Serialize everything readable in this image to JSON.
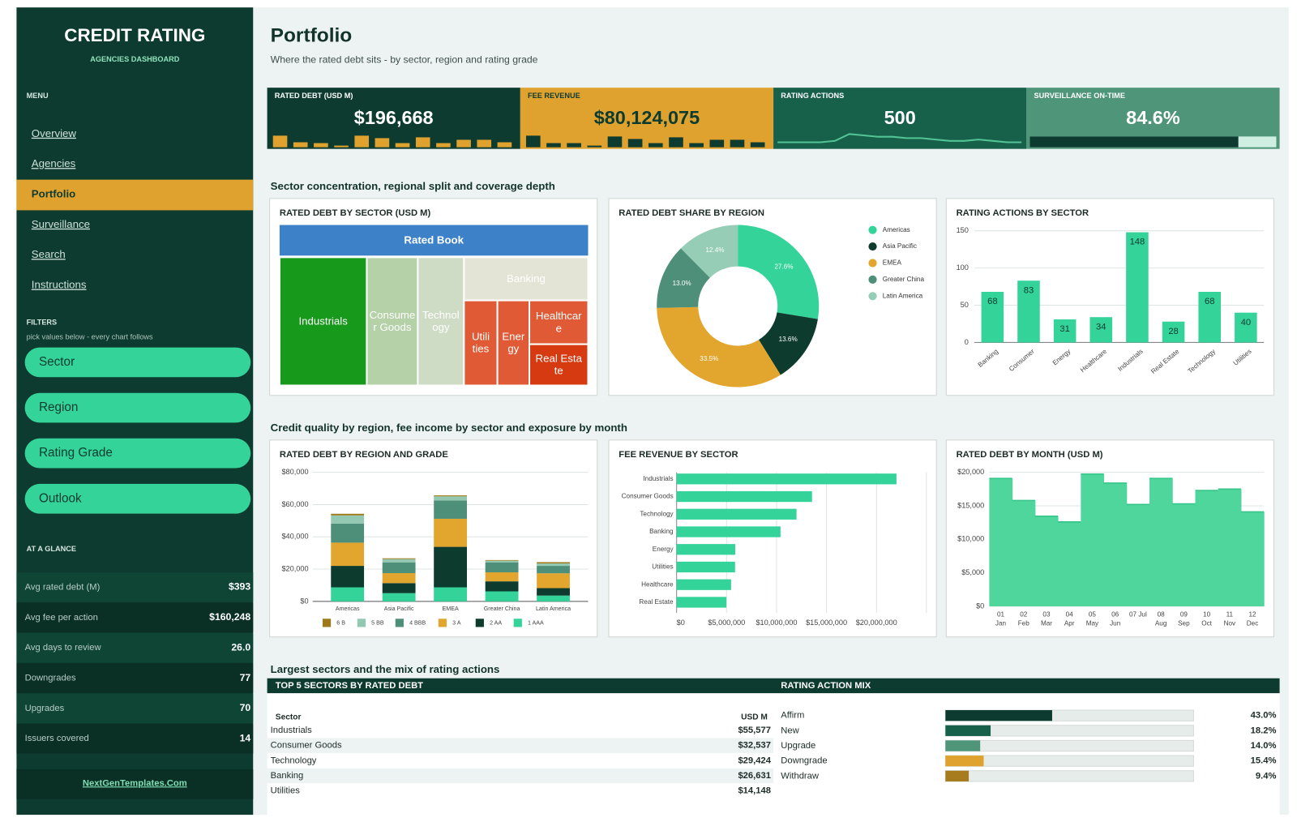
{
  "sidebar": {
    "title": "CREDIT RATING",
    "subtitle": "AGENCIES DASHBOARD",
    "menu_label": "MENU",
    "menu": [
      {
        "label": "Overview",
        "active": false
      },
      {
        "label": "Agencies",
        "active": false
      },
      {
        "label": "Portfolio",
        "active": true
      },
      {
        "label": "Surveillance",
        "active": false
      },
      {
        "label": "Search",
        "active": false
      },
      {
        "label": "Instructions",
        "active": false
      }
    ],
    "filters_label": "FILTERS",
    "filters_hint": "pick values below - every chart follows",
    "filters": [
      "Sector",
      "Region",
      "Rating Grade",
      "Outlook"
    ],
    "glance_label": "AT A GLANCE",
    "glance": [
      {
        "label": "Avg rated debt (M)",
        "value": "$393"
      },
      {
        "label": "Avg fee per action",
        "value": "$160,248"
      },
      {
        "label": "Avg days to review",
        "value": "26.0"
      },
      {
        "label": "Downgrades",
        "value": "77"
      },
      {
        "label": "Upgrades",
        "value": "70"
      },
      {
        "label": "Issuers covered",
        "value": "14"
      }
    ],
    "footer_link": "NextGenTemplates.Com"
  },
  "header": {
    "title": "Portfolio",
    "subtitle": "Where the rated debt sits - by sector, region and rating grade"
  },
  "kpis": [
    {
      "label": "RATED DEBT (USD M)",
      "value": "$196,668",
      "color": "#0d3b2f",
      "text_color": "#ffffff",
      "spark_type": "bar",
      "spark_color": "#e0a22e",
      "spark": [
        14,
        6,
        5,
        2,
        14,
        11,
        5,
        12,
        5,
        9,
        9,
        6
      ]
    },
    {
      "label": "FEE REVENUE",
      "value": "$80,124,075",
      "color": "#e0a22e",
      "text_color": "#0d3b2f",
      "spark_type": "bar",
      "spark_color": "#0d3b2f",
      "spark": [
        14,
        5,
        5,
        2,
        13,
        10,
        5,
        12,
        5,
        9,
        9,
        6
      ]
    },
    {
      "label": "RATING ACTIONS",
      "value": "500",
      "color": "#17604a",
      "text_color": "#ffffff",
      "spark_type": "line",
      "spark_color": "#52c495",
      "spark": [
        3,
        3,
        3,
        3,
        4,
        9,
        8,
        7,
        7,
        6,
        6,
        5,
        4,
        4,
        5,
        4,
        3,
        3
      ]
    },
    {
      "label": "SURVEILLANCE ON-TIME",
      "value": {
        "value": 84.6,
        "label": "84.6%"
      },
      "color": "#4e9579",
      "text_color": "#ffffff",
      "spark_type": "progress",
      "spark_color": "#0d3b2f",
      "track_color": "#cdeee0",
      "xlim": [
        0,
        100
      ]
    }
  ],
  "sections": [
    "Sector concentration, regional split and coverage depth",
    "Credit quality by region, fee income by sector and exposure by month",
    "Largest sectors and the mix of rating actions"
  ],
  "chart_data": [
    {
      "type": "treemap",
      "title": "RATED DEBT BY SECTOR (USD M)",
      "header": "Rated Book",
      "header_color": "#3d82c8",
      "nodes": [
        {
          "name": "Industrials",
          "value": 55577,
          "color": "#17991c"
        },
        {
          "name": "Consumer Goods",
          "value": 32537,
          "color": "#b4d1a8"
        },
        {
          "name": "Technology",
          "value": 29424,
          "color": "#cfdcc5"
        },
        {
          "name": "Banking",
          "value": 26631,
          "color": "#e3e3d6"
        },
        {
          "name": "Utilities",
          "value": 14148,
          "color": "#e05a35"
        },
        {
          "name": "Energy",
          "value": 13500,
          "color": "#e05a35"
        },
        {
          "name": "Healthcare",
          "value": 12800,
          "color": "#e05a35"
        },
        {
          "name": "Real Estate",
          "value": 12051,
          "color": "#d63a10"
        }
      ]
    },
    {
      "type": "donut",
      "title": "RATED DEBT SHARE BY REGION",
      "categories": [
        "Americas",
        "Asia Pacific",
        "EMEA",
        "Greater China",
        "Latin America"
      ],
      "values": [
        27.6,
        13.6,
        33.5,
        13.0,
        12.4
      ],
      "value_labels": [
        "27.6%",
        "13.6%",
        "33.5%",
        "13.0%",
        "12.4%"
      ],
      "colors": [
        "#34d399",
        "#0d3b2e",
        "#e2a52d",
        "#4e8f79",
        "#96cdb6"
      ]
    },
    {
      "type": "bar",
      "title": "RATING ACTIONS BY SECTOR",
      "categories": [
        "Banking",
        "Consumer",
        "Energy",
        "Healthcare",
        "Industrials",
        "Real Estate",
        "Technology",
        "Utilities"
      ],
      "values": [
        68,
        83,
        31,
        34,
        148,
        28,
        68,
        40
      ],
      "color": "#34d399",
      "ylim": [
        0,
        150
      ],
      "yticks": [
        0,
        50,
        100,
        150
      ],
      "grid": true
    },
    {
      "type": "stacked_bar",
      "title": "RATED DEBT BY REGION AND GRADE",
      "categories": [
        "Americas",
        "Asia Pacific",
        "EMEA",
        "Greater China",
        "Latin America"
      ],
      "series": [
        {
          "name": "6 B",
          "color": "#9c7a1c",
          "values": [
            1000,
            500,
            600,
            400,
            800
          ]
        },
        {
          "name": "5 BB",
          "color": "#93c9b3",
          "values": [
            5100,
            2000,
            2600,
            1000,
            1500
          ]
        },
        {
          "name": "4 BBB",
          "color": "#4e8f79",
          "values": [
            11800,
            6700,
            11300,
            6200,
            4600
          ]
        },
        {
          "name": "3 A",
          "color": "#e2a52d",
          "values": [
            14400,
            6200,
            17400,
            5600,
            9200
          ]
        },
        {
          "name": "2 AA",
          "color": "#0d3b2e",
          "values": [
            13300,
            6200,
            25100,
            6200,
            4600
          ]
        },
        {
          "name": "1 AAA",
          "color": "#34d399",
          "values": [
            8700,
            5100,
            8700,
            6200,
            3600
          ]
        }
      ],
      "ylim": [
        0,
        80000
      ],
      "yticks": [
        {
          "value": 0,
          "label": "$0"
        },
        {
          "value": 20000,
          "label": "$20,000"
        },
        {
          "value": 40000,
          "label": "$40,000"
        },
        {
          "value": 60000,
          "label": "$60,000"
        },
        {
          "value": 80000,
          "label": "$80,000"
        }
      ],
      "grid": true
    },
    {
      "type": "hbar",
      "title": "FEE REVENUE BY SECTOR",
      "categories": [
        "Industrials",
        "Consumer Goods",
        "Technology",
        "Banking",
        "Energy",
        "Utilities",
        "Healthcare",
        "Real Estate"
      ],
      "values": [
        22000000,
        13550000,
        12000000,
        10400000,
        5870000,
        5850000,
        5450000,
        4980000
      ],
      "color": "#34d399",
      "xlim": [
        0,
        25000000
      ],
      "xticks": [
        {
          "value": 0,
          "label": "$0"
        },
        {
          "value": 5000000,
          "label": "$5,000,000"
        },
        {
          "value": 10000000,
          "label": "$10,000,000"
        },
        {
          "value": 15000000,
          "label": "$15,000,000"
        },
        {
          "value": 20000000,
          "label": "$20,000,000"
        }
      ],
      "grid": true
    },
    {
      "type": "step_area",
      "title": "RATED DEBT BY MONTH (USD M)",
      "categories": [
        "01",
        "02",
        "03",
        "04",
        "05",
        "06",
        "07 Jul",
        "08",
        "09",
        "10",
        "11",
        "12"
      ],
      "sublabels": [
        "Jan",
        "Feb",
        "Mar",
        "Apr",
        "May",
        "Jun",
        null,
        "Aug",
        "Sep",
        "Oct",
        "Nov",
        "Dec"
      ],
      "values": [
        19100,
        15800,
        13450,
        12600,
        19750,
        18400,
        15200,
        19100,
        15300,
        17300,
        17500,
        14100
      ],
      "color": "#4fd69c",
      "line_color": "#35c487",
      "ylim": [
        0,
        20000
      ],
      "yticks": [
        {
          "value": 0,
          "label": "$0"
        },
        {
          "value": 5000,
          "label": "$5,000"
        },
        {
          "value": 10000,
          "label": "$10,000"
        },
        {
          "value": 15000,
          "label": "$15,000"
        },
        {
          "value": 20000,
          "label": "$20,000"
        }
      ],
      "grid": true
    }
  ],
  "top_sectors": {
    "title": "TOP 5 SECTORS BY RATED DEBT",
    "columns": [
      "Sector",
      "USD M"
    ],
    "rows": [
      [
        "Industrials",
        "$55,577"
      ],
      [
        "Consumer Goods",
        "$32,537"
      ],
      [
        "Technology",
        "$29,424"
      ],
      [
        "Banking",
        "$26,631"
      ],
      [
        "Utilities",
        "$14,148"
      ]
    ]
  },
  "action_mix": {
    "title": "RATING ACTION MIX",
    "xlim": [
      0,
      100
    ],
    "rows": [
      {
        "label": "Affirm",
        "value": 43.0,
        "value_label": "43.0%",
        "color": "#0d3b2f"
      },
      {
        "label": "New",
        "value": 18.2,
        "value_label": "18.2%",
        "color": "#17604a"
      },
      {
        "label": "Upgrade",
        "value": 14.0,
        "value_label": "14.0%",
        "color": "#4e9579"
      },
      {
        "label": "Downgrade",
        "value": 15.4,
        "value_label": "15.4%",
        "color": "#e0a22e"
      },
      {
        "label": "Withdraw",
        "value": 9.4,
        "value_label": "9.4%",
        "color": "#a67c1e"
      }
    ]
  }
}
